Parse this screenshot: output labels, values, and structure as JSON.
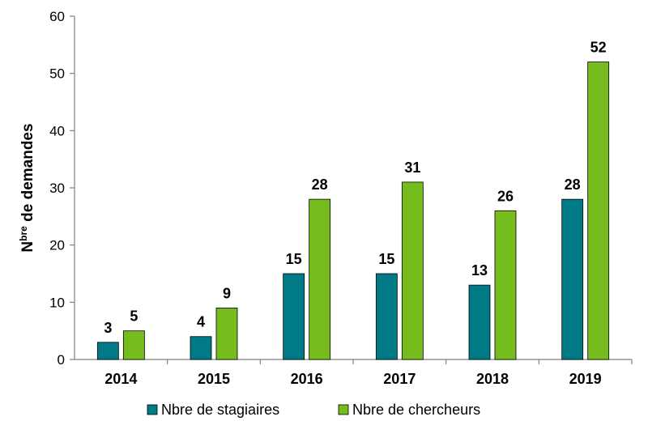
{
  "chart_data": {
    "type": "bar",
    "categories": [
      "2014",
      "2015",
      "2016",
      "2017",
      "2018",
      "2019"
    ],
    "series": [
      {
        "name": "Nbre de stagiaires",
        "color": "#007a87",
        "values": [
          3,
          4,
          15,
          15,
          13,
          28
        ]
      },
      {
        "name": "Nbre de chercheurs",
        "color": "#77bc1f",
        "values": [
          5,
          9,
          28,
          31,
          26,
          52
        ]
      }
    ],
    "ylabel_main": "N",
    "ylabel_sup": "bre",
    "ylabel_rest": " de demandes",
    "xlabel": "",
    "ylim": [
      0,
      60
    ],
    "yticks": [
      0,
      10,
      20,
      30,
      40,
      50,
      60
    ],
    "grid": false,
    "legend": "bottom"
  }
}
